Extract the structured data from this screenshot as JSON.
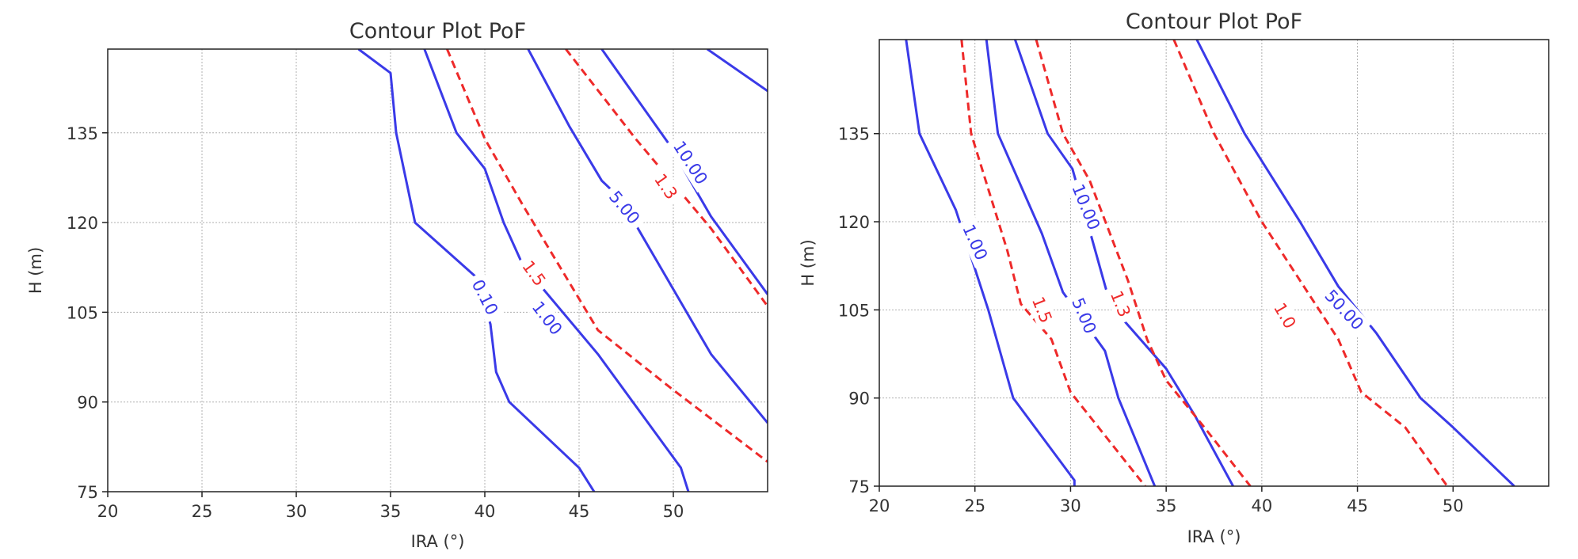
{
  "chart_data": [
    {
      "type": "contour",
      "title": "Contour Plot PoF",
      "xlabel": "IRA (°)",
      "ylabel": "H (m)",
      "xlim": [
        20,
        55
      ],
      "ylim": [
        75,
        149
      ],
      "xticks": [
        20,
        25,
        30,
        35,
        40,
        45,
        50
      ],
      "yticks": [
        75,
        90,
        105,
        120,
        135
      ],
      "grid": true,
      "colors": {
        "pof": "#3a3ae8",
        "fs": "#ee2a2a"
      },
      "series": [
        {
          "label": "0.10",
          "kind": "pof",
          "label_at": [
            40,
            107.5
          ],
          "label_rot": 63,
          "points": [
            [
              33.3,
              149
            ],
            [
              35,
              145
            ],
            [
              35.3,
              135
            ],
            [
              36.3,
              120
            ],
            [
              39.5,
              111
            ],
            [
              40.3,
              103
            ],
            [
              40.6,
              95
            ],
            [
              41.3,
              90
            ],
            [
              45,
              79
            ],
            [
              45.8,
              75
            ]
          ]
        },
        {
          "label": "1.00",
          "kind": "pof",
          "label_at": [
            43.3,
            104
          ],
          "label_rot": 52,
          "points": [
            [
              36.8,
              149
            ],
            [
              38.5,
              135
            ],
            [
              40,
              129
            ],
            [
              41,
              120
            ],
            [
              42,
              113
            ],
            [
              46,
              98
            ],
            [
              50.4,
              79
            ],
            [
              50.8,
              75
            ]
          ]
        },
        {
          "label": "5.00",
          "kind": "pof",
          "label_at": [
            47.4,
            122.5
          ],
          "label_rot": 50,
          "points": [
            [
              42.3,
              149
            ],
            [
              44.5,
              136
            ],
            [
              46.2,
              127
            ],
            [
              47.2,
              124
            ],
            [
              52,
              98
            ],
            [
              55,
              86.5
            ]
          ]
        },
        {
          "label": "10.00",
          "kind": "pof",
          "label_at": [
            50.9,
            130
          ],
          "label_rot": 57,
          "points": [
            [
              46.2,
              149
            ],
            [
              49.8,
              133
            ],
            [
              52,
              121
            ],
            [
              55,
              108
            ]
          ]
        },
        {
          "label": "",
          "kind": "pof",
          "label_at": null,
          "label_rot": 0,
          "points": [
            [
              51.8,
              149
            ],
            [
              55,
              142
            ]
          ]
        },
        {
          "label": "1.5",
          "kind": "fs",
          "label_at": [
            42.6,
            111.5
          ],
          "label_rot": 54,
          "points": [
            [
              38,
              149
            ],
            [
              40,
              134
            ],
            [
              42,
              123
            ],
            [
              46,
              102
            ],
            [
              50,
              92
            ],
            [
              55,
              80
            ]
          ]
        },
        {
          "label": "1.3",
          "kind": "fs",
          "label_at": [
            49.6,
            126
          ],
          "label_rot": 55,
          "points": [
            [
              44.3,
              149
            ],
            [
              48,
              134
            ],
            [
              52,
              119
            ],
            [
              55,
              106
            ]
          ]
        }
      ]
    },
    {
      "type": "contour",
      "title": "Contour Plot PoF",
      "xlabel": "IRA (°)",
      "ylabel": "H (m)",
      "xlim": [
        20,
        55
      ],
      "ylim": [
        75,
        151
      ],
      "xticks": [
        20,
        25,
        30,
        35,
        40,
        45,
        50
      ],
      "yticks": [
        75,
        90,
        105,
        120,
        135
      ],
      "grid": true,
      "colors": {
        "pof": "#3a3ae8",
        "fs": "#ee2a2a"
      },
      "series": [
        {
          "label": "1.00",
          "kind": "pof",
          "label_at": [
            25,
            116.5
          ],
          "label_rot": 66,
          "points": [
            [
              21.4,
              151
            ],
            [
              22.1,
              135
            ],
            [
              24,
              122
            ],
            [
              25.7,
              105
            ],
            [
              27,
              90
            ],
            [
              30.2,
              76
            ],
            [
              30.2,
              75
            ]
          ]
        },
        {
          "label": "5.00",
          "kind": "pof",
          "label_at": [
            30.7,
            104
          ],
          "label_rot": 67,
          "points": [
            [
              25.6,
              151
            ],
            [
              26.2,
              135
            ],
            [
              28.5,
              118
            ],
            [
              29.6,
              108
            ],
            [
              31.8,
              98
            ],
            [
              32.5,
              90
            ],
            [
              34.4,
              75
            ]
          ]
        },
        {
          "label": "10.00",
          "kind": "pof",
          "label_at": [
            30.8,
            122.5
          ],
          "label_rot": 68,
          "points": [
            [
              27.1,
              151
            ],
            [
              28.8,
              135
            ],
            [
              30.1,
              129
            ],
            [
              31.9,
              108
            ],
            [
              32.3,
              105
            ],
            [
              35,
              95
            ],
            [
              36.5,
              87
            ],
            [
              38.5,
              75
            ]
          ]
        },
        {
          "label": "50.00",
          "kind": "pof",
          "label_at": [
            44.3,
            105
          ],
          "label_rot": 47,
          "points": [
            [
              36.6,
              151
            ],
            [
              39.1,
              135
            ],
            [
              42,
              120
            ],
            [
              44,
              109
            ],
            [
              46,
              101
            ],
            [
              48.3,
              90
            ],
            [
              50,
              85
            ],
            [
              53.2,
              75
            ]
          ]
        },
        {
          "label": "1.5",
          "kind": "fs",
          "label_at": [
            28.5,
            105
          ],
          "label_rot": 68,
          "points": [
            [
              24.3,
              151
            ],
            [
              24.8,
              135
            ],
            [
              26.7,
              115
            ],
            [
              27.4,
              106
            ],
            [
              29,
              100
            ],
            [
              30,
              91
            ],
            [
              33.9,
              75
            ]
          ]
        },
        {
          "label": "1.3",
          "kind": "fs",
          "label_at": [
            32.6,
            106
          ],
          "label_rot": 68,
          "points": [
            [
              28.2,
              151
            ],
            [
              29.6,
              135
            ],
            [
              31,
              127
            ],
            [
              33,
              110
            ],
            [
              34,
              100
            ],
            [
              35,
              93
            ],
            [
              37,
              85
            ],
            [
              39.4,
              75
            ]
          ]
        },
        {
          "label": "1.0",
          "kind": "fs",
          "label_at": [
            41.2,
            104
          ],
          "label_rot": 60,
          "points": [
            [
              35.4,
              151
            ],
            [
              37.5,
              135
            ],
            [
              40,
              120
            ],
            [
              42,
              110
            ],
            [
              44,
              100
            ],
            [
              45.2,
              91
            ],
            [
              47.5,
              85
            ],
            [
              49.7,
              75
            ]
          ]
        }
      ]
    }
  ]
}
